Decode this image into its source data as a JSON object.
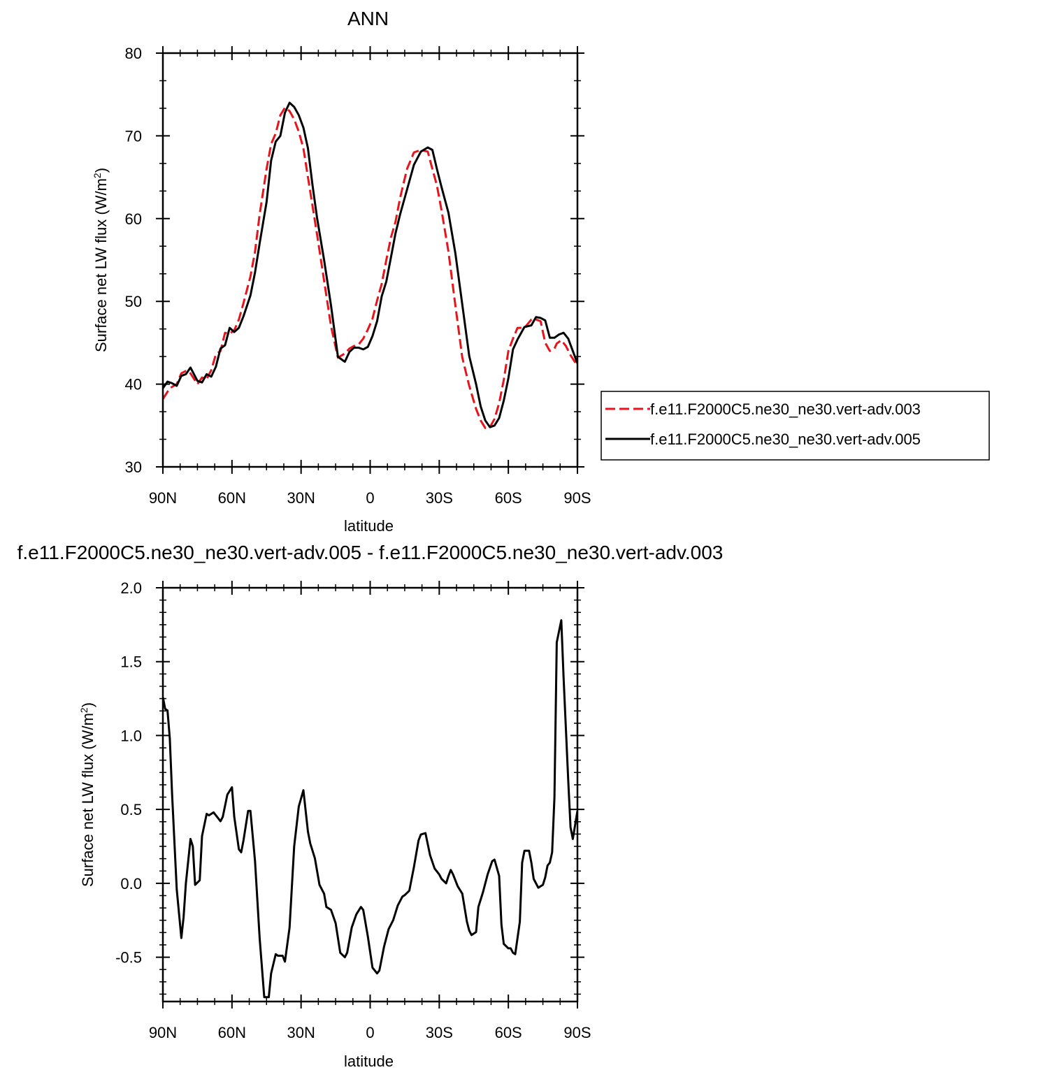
{
  "chart_data": [
    {
      "type": "line",
      "title": "ANN",
      "xlabel": "latitude",
      "ylabel": "Surface net LW flux (W/m²)",
      "ylabel_main": "Surface net LW flux (W/m",
      "ylabel_sup": "2",
      "ylabel_tail": ")",
      "xlim": [
        90,
        -90
      ],
      "ylim": [
        30,
        80
      ],
      "x_ticks": [
        {
          "value": 90,
          "label": "90N"
        },
        {
          "value": 60,
          "label": "60N"
        },
        {
          "value": 30,
          "label": "30N"
        },
        {
          "value": 0,
          "label": "0"
        },
        {
          "value": -30,
          "label": "30S"
        },
        {
          "value": -60,
          "label": "60S"
        },
        {
          "value": -90,
          "label": "90S"
        }
      ],
      "y_ticks": [
        {
          "value": 30,
          "label": "30"
        },
        {
          "value": 40,
          "label": "40"
        },
        {
          "value": 50,
          "label": "50"
        },
        {
          "value": 60,
          "label": "60"
        },
        {
          "value": 70,
          "label": "70"
        },
        {
          "value": 80,
          "label": "80"
        }
      ],
      "legend_position": "right",
      "series": [
        {
          "name": "f.e11.F2000C5.ne30_ne30.vert-adv.003",
          "color": "#e8141c",
          "style": "dashed",
          "x": [
            90,
            87,
            84,
            82,
            80,
            78,
            75,
            73,
            71,
            69,
            67,
            65,
            63,
            61,
            59,
            57,
            55,
            52,
            50,
            48,
            45,
            43,
            41,
            39,
            37,
            35,
            33,
            31,
            29,
            27,
            25,
            23,
            20,
            17,
            14,
            11,
            9,
            7,
            5,
            3,
            1,
            -1,
            -3,
            -5,
            -7,
            -9,
            -11,
            -13,
            -16,
            -19,
            -22,
            -25,
            -27,
            -29,
            -31,
            -34,
            -37,
            -40,
            -43,
            -46,
            -48,
            -50,
            -52,
            -54,
            -56,
            -58,
            -60,
            -62,
            -64,
            -67,
            -70,
            -72,
            -74,
            -76,
            -78,
            -80,
            -81,
            -83,
            -85,
            -87,
            -90
          ],
          "y": [
            38.2,
            39.5,
            40.0,
            41.3,
            41.6,
            41.3,
            40.0,
            40.8,
            40.6,
            41.7,
            43.6,
            44.0,
            46.2,
            46.1,
            46.5,
            47.8,
            49.8,
            53.0,
            56.0,
            60.5,
            66.0,
            69.0,
            70.3,
            72.5,
            73.4,
            73.0,
            72.0,
            70.5,
            68.5,
            65.0,
            61.5,
            58.0,
            52.5,
            47.0,
            43.2,
            43.7,
            44.3,
            44.6,
            44.8,
            45.5,
            46.6,
            47.9,
            50.1,
            52.1,
            55.0,
            57.7,
            59.6,
            62.5,
            66.0,
            68.0,
            68.3,
            68.1,
            66.0,
            64.0,
            61.0,
            56.0,
            49.5,
            43.2,
            39.8,
            37.0,
            35.6,
            34.7,
            34.8,
            35.8,
            37.7,
            40.5,
            44.0,
            45.5,
            46.8,
            46.8,
            47.8,
            47.8,
            47.6,
            45.0,
            44.0,
            44.3,
            44.9,
            45.3,
            44.6,
            43.5,
            42.2
          ]
        },
        {
          "name": "f.e11.F2000C5.ne30_ne30.vert-adv.005",
          "color": "#000000",
          "style": "solid",
          "x": [
            90,
            88,
            86,
            84,
            82,
            80,
            78,
            75,
            73,
            71,
            69,
            67,
            65,
            63,
            61,
            59,
            57,
            55,
            52,
            50,
            48,
            45,
            43,
            41,
            39,
            37,
            35,
            33,
            31,
            29,
            27,
            25,
            23,
            20,
            17,
            14,
            11,
            9,
            7,
            5,
            3,
            1,
            -1,
            -3,
            -5,
            -7,
            -9,
            -11,
            -13,
            -16,
            -19,
            -22,
            -25,
            -27,
            -29,
            -31,
            -34,
            -37,
            -40,
            -43,
            -46,
            -48,
            -50,
            -52,
            -54,
            -56,
            -58,
            -60,
            -62,
            -64,
            -67,
            -70,
            -72,
            -74,
            -76,
            -78,
            -80,
            -82,
            -84,
            -86,
            -88,
            -90
          ],
          "y": [
            39.5,
            40.3,
            40.1,
            39.8,
            41.0,
            41.2,
            42.0,
            40.4,
            40.2,
            41.2,
            40.9,
            42.1,
            44.3,
            44.7,
            46.8,
            46.3,
            46.8,
            48.2,
            50.7,
            53.5,
            57.0,
            62.0,
            67.0,
            69.3,
            70.0,
            72.8,
            74.0,
            73.5,
            72.5,
            71.0,
            68.5,
            64.0,
            60.0,
            55.0,
            49.5,
            43.3,
            42.7,
            43.9,
            44.4,
            44.4,
            44.2,
            44.5,
            45.8,
            47.6,
            50.6,
            52.4,
            55.3,
            58.2,
            60.5,
            63.5,
            66.5,
            68.1,
            68.6,
            68.3,
            66.0,
            63.8,
            60.7,
            55.8,
            49.6,
            43.4,
            40.0,
            37.3,
            35.6,
            34.8,
            35.0,
            35.9,
            38.0,
            40.7,
            44.2,
            45.4,
            46.9,
            47.1,
            48.1,
            48.0,
            47.7,
            45.6,
            45.6,
            46.0,
            46.2,
            45.5,
            44.0,
            42.5
          ]
        }
      ]
    },
    {
      "type": "line",
      "title": "f.e11.F2000C5.ne30_ne30.vert-adv.005 - f.e11.F2000C5.ne30_ne30.vert-adv.003",
      "xlabel": "latitude",
      "ylabel": "Surface net LW flux (W/m²)",
      "ylabel_main": "Surface net LW flux (W/m",
      "ylabel_sup": "2",
      "ylabel_tail": ")",
      "xlim": [
        90,
        -90
      ],
      "ylim": [
        -0.8,
        2.0
      ],
      "x_ticks": [
        {
          "value": 90,
          "label": "90N"
        },
        {
          "value": 60,
          "label": "60N"
        },
        {
          "value": 30,
          "label": "30N"
        },
        {
          "value": 0,
          "label": "0"
        },
        {
          "value": -30,
          "label": "30S"
        },
        {
          "value": -60,
          "label": "60S"
        },
        {
          "value": -90,
          "label": "90S"
        }
      ],
      "y_ticks": [
        {
          "value": -0.5,
          "label": "-0.5"
        },
        {
          "value": 0.0,
          "label": "0.0"
        },
        {
          "value": 0.5,
          "label": "0.5"
        },
        {
          "value": 1.0,
          "label": "1.0"
        },
        {
          "value": 1.5,
          "label": "1.5"
        },
        {
          "value": 2.0,
          "label": "2.0"
        }
      ],
      "series": [
        {
          "name": "",
          "color": "#000000",
          "style": "solid",
          "x": [
            90,
            89,
            88,
            87,
            86,
            84,
            82,
            81,
            80,
            78,
            77,
            76,
            74,
            73,
            71,
            70,
            68,
            67,
            65,
            64,
            62,
            60,
            59,
            57,
            56,
            55,
            53,
            52,
            50,
            48,
            46,
            44,
            43,
            41,
            40,
            39,
            38,
            37,
            35,
            33,
            31,
            29,
            27,
            26,
            24,
            22,
            20,
            19,
            17,
            15,
            13,
            11,
            10,
            8,
            6,
            4,
            3,
            1,
            -1,
            -3,
            -4,
            -6,
            -8,
            -10,
            -12,
            -14,
            -15,
            -17,
            -19,
            -21,
            -22,
            -24,
            -26,
            -28,
            -30,
            -31,
            -33,
            -34,
            -35,
            -36,
            -38,
            -40,
            -42,
            -43,
            -44,
            -46,
            -47,
            -49,
            -51,
            -53,
            -54,
            -56,
            -57,
            -58,
            -60,
            -61,
            -62,
            -63,
            -65,
            -66,
            -67,
            -69,
            -70,
            -71,
            -73,
            -75,
            -76,
            -77,
            -78,
            -79,
            -80,
            -81,
            -83,
            -84,
            -86,
            -87,
            -88,
            -90
          ],
          "y": [
            1.26,
            1.18,
            1.17,
            0.98,
            0.6,
            -0.04,
            -0.37,
            -0.23,
            0.0,
            0.3,
            0.25,
            -0.01,
            0.02,
            0.32,
            0.47,
            0.46,
            0.48,
            0.46,
            0.42,
            0.45,
            0.6,
            0.65,
            0.45,
            0.23,
            0.21,
            0.29,
            0.49,
            0.49,
            0.15,
            -0.37,
            -0.77,
            -0.77,
            -0.61,
            -0.48,
            -0.49,
            -0.49,
            -0.49,
            -0.53,
            -0.3,
            0.25,
            0.52,
            0.63,
            0.35,
            0.27,
            0.17,
            -0.01,
            -0.07,
            -0.16,
            -0.18,
            -0.27,
            -0.47,
            -0.5,
            -0.47,
            -0.3,
            -0.21,
            -0.16,
            -0.18,
            -0.36,
            -0.57,
            -0.61,
            -0.59,
            -0.43,
            -0.31,
            -0.25,
            -0.15,
            -0.09,
            -0.08,
            -0.05,
            0.11,
            0.29,
            0.33,
            0.34,
            0.19,
            0.1,
            0.06,
            0.03,
            0.0,
            0.05,
            0.09,
            0.06,
            -0.02,
            -0.07,
            -0.26,
            -0.32,
            -0.35,
            -0.33,
            -0.16,
            -0.06,
            0.06,
            0.15,
            0.16,
            0.05,
            -0.28,
            -0.41,
            -0.44,
            -0.44,
            -0.47,
            -0.48,
            -0.26,
            0.14,
            0.22,
            0.22,
            0.14,
            0.03,
            -0.03,
            -0.01,
            0.04,
            0.12,
            0.14,
            0.21,
            0.58,
            1.63,
            1.78,
            1.39,
            0.7,
            0.38,
            0.3,
            0.49
          ]
        }
      ]
    }
  ],
  "colors": {
    "red_series": "#e8141c",
    "black_series": "#000000"
  }
}
